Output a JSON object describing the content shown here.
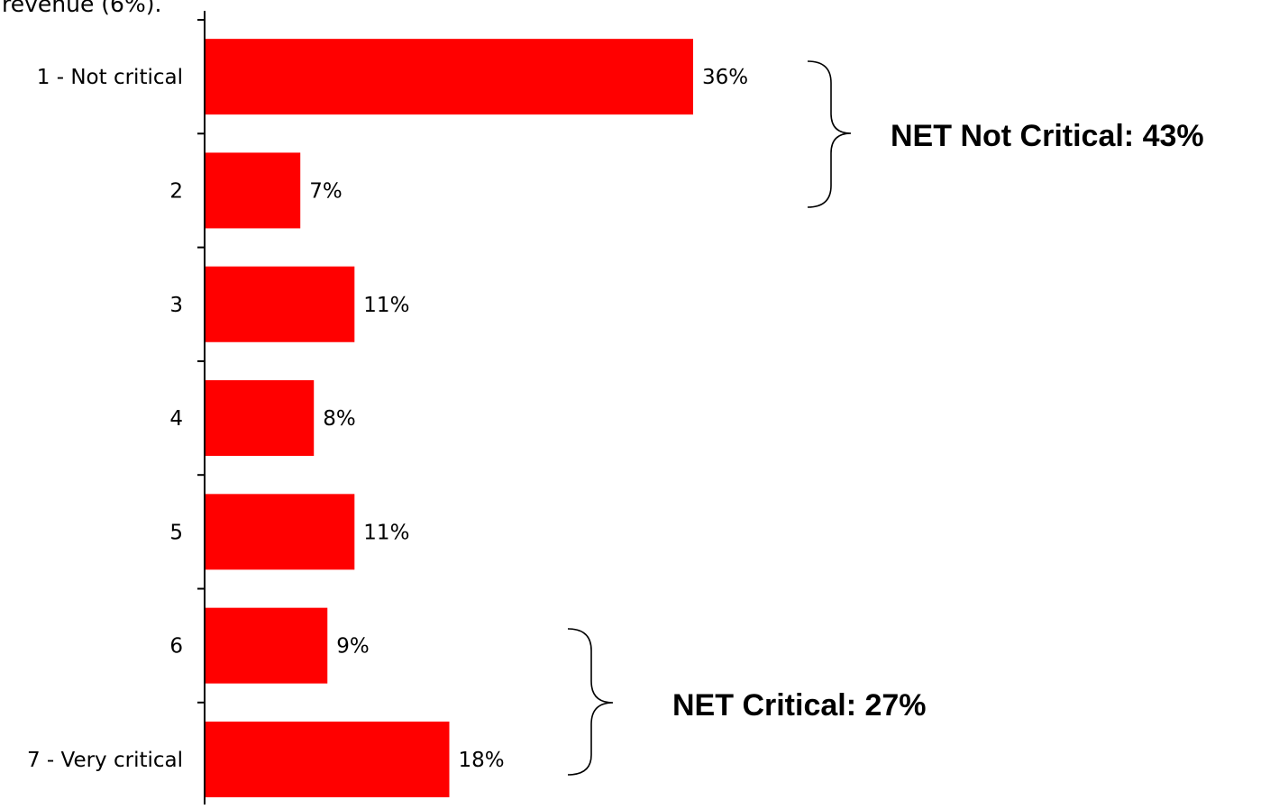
{
  "chart_data": {
    "type": "bar",
    "orientation": "horizontal",
    "title_fragment": "revenue (6%).",
    "categories": [
      "1 - Not critical",
      "2",
      "3",
      "4",
      "5",
      "6",
      "7 - Very critical"
    ],
    "values": [
      36,
      7,
      11,
      8,
      11,
      9,
      18
    ],
    "value_labels": [
      "36%",
      "7%",
      "11%",
      "8%",
      "11%",
      "9%",
      "18%"
    ],
    "value_unit": "%",
    "xlim": [
      0,
      36
    ],
    "bar_color": "#ff0000",
    "axis_color": "#000000",
    "grid": false,
    "legend": "none",
    "annotations": [
      {
        "text": "NET Not Critical: 43%",
        "groups_categories": [
          "1 - Not critical",
          "2"
        ]
      },
      {
        "text": "NET Critical: 27%",
        "groups_categories": [
          "6",
          "7 - Very critical"
        ]
      }
    ]
  }
}
